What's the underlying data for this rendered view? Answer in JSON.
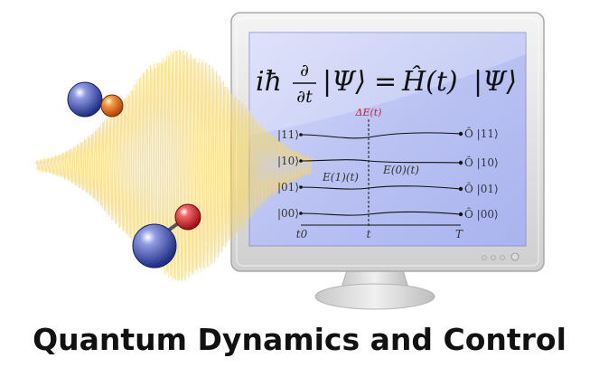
{
  "title": "Quantum Dynamics and Control",
  "equation": {
    "lhs_prefix": "iħ",
    "partial_top": "∂",
    "partial_bottom": "∂t",
    "ket_left": "|Ψ⟩",
    "equals": "=",
    "hamiltonian": "Ĥ(t)",
    "ket_right": "|Ψ⟩"
  },
  "diagram": {
    "delta_label": "ΔE(t)",
    "energy_label_1": "E(1)(t)",
    "energy_label_0": "E(0)(t)",
    "states_in": [
      "|11⟩",
      "|10⟩",
      "|01⟩",
      "|00⟩"
    ],
    "states_out": [
      "Ô |11⟩",
      "Ô |10⟩",
      "Ô |01⟩",
      "Ô |00⟩"
    ],
    "axis_labels": {
      "start": "t0",
      "middle": "t",
      "end": "T"
    }
  },
  "colors": {
    "pulse": "#f5d76e",
    "screen": "#b9c2f2",
    "monitor_frame": "#e2e2e2",
    "molecule_blue": "#2b3f9e",
    "molecule_red": "#c4141b",
    "molecule_orange": "#e0651c",
    "delta_label": "#d01c3a"
  },
  "icons": [
    "monitor-icon",
    "laser-pulse-icon",
    "molecule-icon"
  ]
}
